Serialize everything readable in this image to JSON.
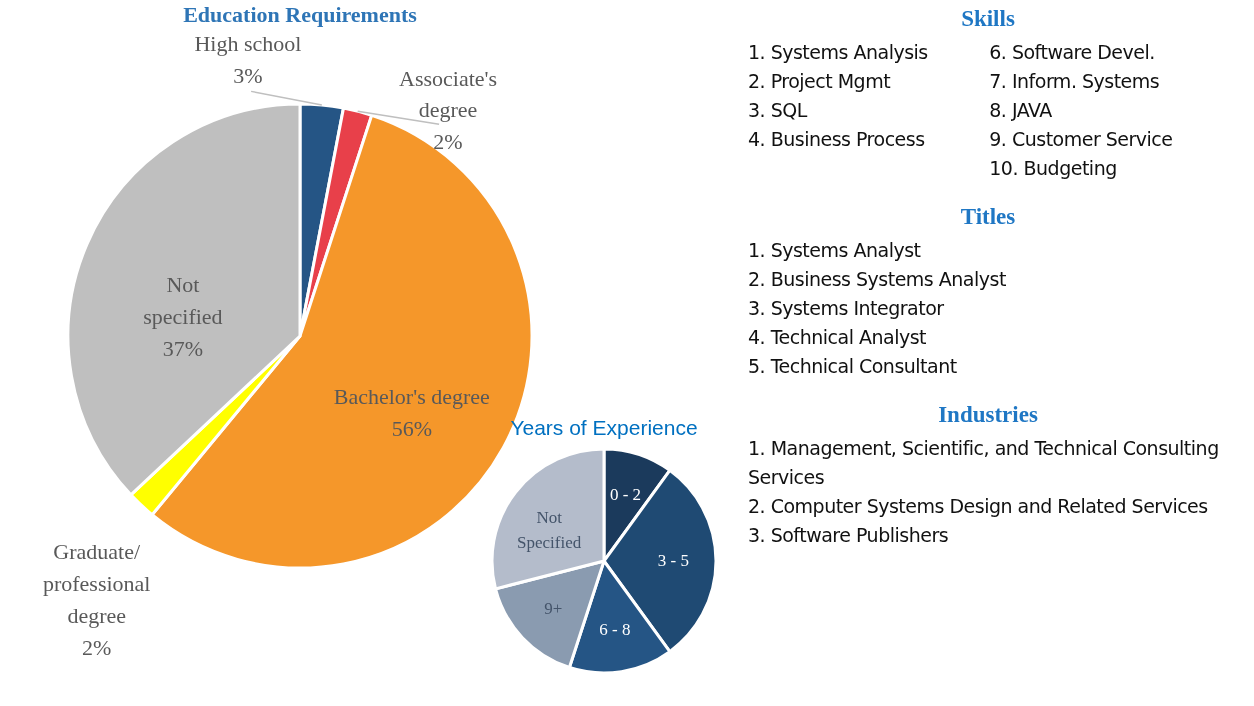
{
  "chart_data": [
    {
      "type": "pie",
      "title": "Education Requirements",
      "categories": [
        "High school",
        "Associate's degree",
        "Bachelor's degree",
        "Graduate/professional degree",
        "Not specified"
      ],
      "values": [
        3,
        2,
        56,
        2,
        37
      ],
      "colors": [
        "#255585",
        "#e8404a",
        "#f5972a",
        "#ffff00",
        "#bfbfbf"
      ],
      "value_labels": [
        "3%",
        "2%",
        "56%",
        "2%",
        "37%"
      ]
    },
    {
      "type": "pie",
      "title": "Years of Experience",
      "categories": [
        "0 - 2",
        "3 - 5",
        "6 - 8",
        "9+",
        "Not Specified"
      ],
      "values": [
        10,
        30,
        15,
        16,
        29
      ],
      "colors": [
        "#1b3a5c",
        "#1f4a73",
        "#255585",
        "#8a9bb0",
        "#b4bccb"
      ]
    },
    {
      "type": "other",
      "title": "Skills",
      "annotations": [
        "1. Systems Analysis",
        "2. Project Mgmt",
        "3. SQL",
        "4. Business Process",
        "6. Software Devel.",
        "7. Inform. Systems",
        "8. JAVA",
        "9. Customer Service",
        "10. Budgeting"
      ]
    },
    {
      "type": "other",
      "title": "Titles",
      "annotations": [
        "1. Systems Analyst",
        "2. Business Systems Analyst",
        "3. Systems Integrator",
        "4. Technical Analyst",
        "5. Technical Consultant"
      ]
    },
    {
      "type": "other",
      "title": "Industries",
      "annotations": [
        "1. Management, Scientific, and Technical Consulting Services",
        "2. Computer Systems Design and Related Services",
        "3. Software Publishers"
      ]
    }
  ]
}
